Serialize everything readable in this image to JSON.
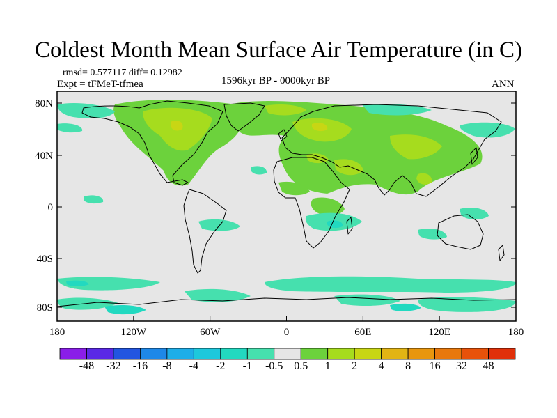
{
  "title": "Coldest Month Mean Surface Air Temperature (in C)",
  "stats": "rmsd= 0.577117  diff= 0.12982",
  "experiment": "Expt = tFMeT-tfmea",
  "period": "1596kyr BP - 0000kyr BP",
  "season": "ANN",
  "map": {
    "lat_labels": [
      "80N",
      "40N",
      "0",
      "40S",
      "80S"
    ],
    "lon_labels": [
      "180",
      "120W",
      "60W",
      "0",
      "60E",
      "120E",
      "180"
    ],
    "background_color": "#e6e6e6",
    "land_outline_color": "#000000"
  },
  "colorbar": {
    "colors": [
      "#8a1ee8",
      "#5a28e6",
      "#2255e0",
      "#1e88e8",
      "#1eaee8",
      "#1ec8dc",
      "#22d9c0",
      "#46e0ae",
      "#e6e6e6",
      "#6cd23c",
      "#a6dc1e",
      "#c8d614",
      "#e2b414",
      "#e8960e",
      "#e8780c",
      "#e8520a",
      "#e0300a"
    ],
    "labels": [
      "-48",
      "-32",
      "-16",
      "-8",
      "-4",
      "-2",
      "-1",
      "-0.5",
      "0.5",
      "1",
      "2",
      "4",
      "8",
      "16",
      "32",
      "48"
    ]
  }
}
